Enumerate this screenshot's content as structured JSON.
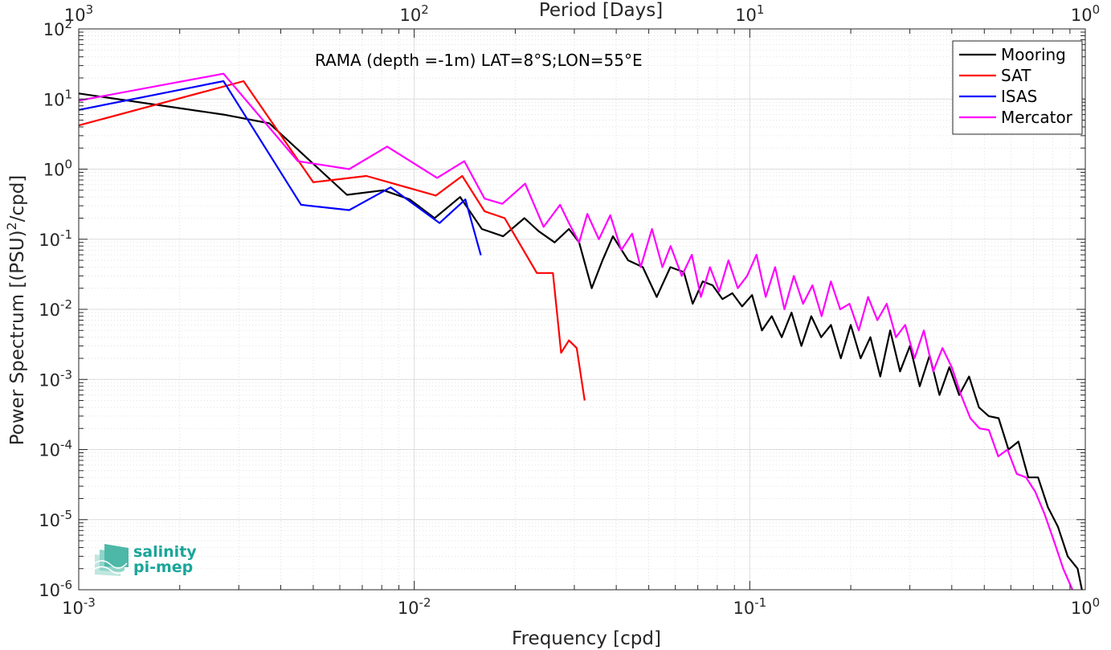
{
  "chart_data": {
    "type": "line",
    "xscale": "log",
    "yscale": "log",
    "xlabel": "Frequency [cpd]",
    "ylabel": "Power Spectrum [(PSU)^2/cpd]",
    "top_xlabel": "Period [Days]",
    "annotation": "RAMA (depth =-1m) LAT=8°S;LON=55°E",
    "xlim": [
      0.001,
      1
    ],
    "ylim": [
      1e-06,
      100
    ],
    "grid": true,
    "legend_position": "top-right",
    "x_ticks": [
      {
        "value": 0.001,
        "base": "10",
        "exp": "-3"
      },
      {
        "value": 0.01,
        "base": "10",
        "exp": "-2"
      },
      {
        "value": 0.1,
        "base": "10",
        "exp": "-1"
      },
      {
        "value": 1,
        "base": "10",
        "exp": "0"
      }
    ],
    "top_ticks": [
      {
        "value": 0.001,
        "base": "10",
        "exp": "3"
      },
      {
        "value": 0.01,
        "base": "10",
        "exp": "2"
      },
      {
        "value": 0.1,
        "base": "10",
        "exp": "1"
      },
      {
        "value": 1,
        "base": "10",
        "exp": "0"
      }
    ],
    "y_ticks": [
      {
        "value": 100,
        "base": "10",
        "exp": "2"
      },
      {
        "value": 10,
        "base": "10",
        "exp": "1"
      },
      {
        "value": 1,
        "base": "10",
        "exp": "0"
      },
      {
        "value": 0.1,
        "base": "10",
        "exp": "-1"
      },
      {
        "value": 0.01,
        "base": "10",
        "exp": "-2"
      },
      {
        "value": 0.001,
        "base": "10",
        "exp": "-3"
      },
      {
        "value": 0.0001,
        "base": "10",
        "exp": "-4"
      },
      {
        "value": 1e-05,
        "base": "10",
        "exp": "-5"
      },
      {
        "value": 1e-06,
        "base": "10",
        "exp": "-6"
      }
    ],
    "series": [
      {
        "name": "Mooring",
        "color": "#000000",
        "points": [
          [
            0.001,
            12
          ],
          [
            0.0027,
            6
          ],
          [
            0.0037,
            4.5
          ],
          [
            0.0063,
            0.43
          ],
          [
            0.0081,
            0.5
          ],
          [
            0.0097,
            0.37
          ],
          [
            0.0115,
            0.2
          ],
          [
            0.0137,
            0.4
          ],
          [
            0.0159,
            0.14
          ],
          [
            0.0184,
            0.11
          ],
          [
            0.0213,
            0.2
          ],
          [
            0.0235,
            0.13
          ],
          [
            0.0262,
            0.09
          ],
          [
            0.0289,
            0.14
          ],
          [
            0.031,
            0.09
          ],
          [
            0.0338,
            0.02
          ],
          [
            0.0364,
            0.05
          ],
          [
            0.0391,
            0.11
          ],
          [
            0.0434,
            0.05
          ],
          [
            0.048,
            0.04
          ],
          [
            0.0528,
            0.015
          ],
          [
            0.058,
            0.04
          ],
          [
            0.0636,
            0.034
          ],
          [
            0.0676,
            0.012
          ],
          [
            0.0724,
            0.025
          ],
          [
            0.0775,
            0.022
          ],
          [
            0.0829,
            0.014
          ],
          [
            0.0887,
            0.017
          ],
          [
            0.0949,
            0.011
          ],
          [
            0.1016,
            0.016
          ],
          [
            0.1087,
            0.005
          ],
          [
            0.1163,
            0.008
          ],
          [
            0.1245,
            0.004
          ],
          [
            0.1332,
            0.009
          ],
          [
            0.1425,
            0.003
          ],
          [
            0.1525,
            0.008
          ],
          [
            0.1632,
            0.004
          ],
          [
            0.1746,
            0.006
          ],
          [
            0.1868,
            0.002
          ],
          [
            0.1999,
            0.006
          ],
          [
            0.2139,
            0.002
          ],
          [
            0.2289,
            0.004
          ],
          [
            0.2449,
            0.0011
          ],
          [
            0.2621,
            0.005
          ],
          [
            0.2804,
            0.0013
          ],
          [
            0.3001,
            0.003
          ],
          [
            0.3211,
            0.0008
          ],
          [
            0.3436,
            0.0022
          ],
          [
            0.3676,
            0.0006
          ],
          [
            0.3934,
            0.0015
          ],
          [
            0.4209,
            0.0006
          ],
          [
            0.4504,
            0.0011
          ],
          [
            0.4819,
            0.0004
          ],
          [
            0.5156,
            0.0003
          ],
          [
            0.5517,
            0.00028
          ],
          [
            0.5904,
            0.0001
          ],
          [
            0.6317,
            0.00013
          ],
          [
            0.676,
            4e-05
          ],
          [
            0.7233,
            4e-05
          ],
          [
            0.774,
            1.5e-05
          ],
          [
            0.8282,
            8e-06
          ],
          [
            0.8862,
            3e-06
          ],
          [
            0.9482,
            2e-06
          ],
          [
            0.9772,
            1e-06
          ]
        ]
      },
      {
        "name": "SAT",
        "color": "#ff0000",
        "points": [
          [
            0.001,
            4.2
          ],
          [
            0.0031,
            18
          ],
          [
            0.005,
            0.65
          ],
          [
            0.0072,
            0.8
          ],
          [
            0.0116,
            0.42
          ],
          [
            0.0139,
            0.8
          ],
          [
            0.0162,
            0.25
          ],
          [
            0.0186,
            0.2
          ],
          [
            0.0232,
            0.033
          ],
          [
            0.0259,
            0.033
          ],
          [
            0.0274,
            0.0024
          ],
          [
            0.0289,
            0.0036
          ],
          [
            0.0305,
            0.0028
          ],
          [
            0.0322,
            0.0005
          ]
        ]
      },
      {
        "name": "ISAS",
        "color": "#0000ff",
        "points": [
          [
            0.001,
            7
          ],
          [
            0.0027,
            18
          ],
          [
            0.0046,
            0.31
          ],
          [
            0.0064,
            0.26
          ],
          [
            0.0085,
            0.55
          ],
          [
            0.0119,
            0.17
          ],
          [
            0.0142,
            0.37
          ],
          [
            0.0158,
            0.059
          ]
        ]
      },
      {
        "name": "Mercator",
        "color": "#ff00ff",
        "points": [
          [
            0.001,
            9.5
          ],
          [
            0.0027,
            23
          ],
          [
            0.0045,
            1.3
          ],
          [
            0.0064,
            1.0
          ],
          [
            0.0083,
            2.1
          ],
          [
            0.0117,
            0.75
          ],
          [
            0.0141,
            1.3
          ],
          [
            0.0162,
            0.38
          ],
          [
            0.0183,
            0.32
          ],
          [
            0.0214,
            0.62
          ],
          [
            0.0243,
            0.15
          ],
          [
            0.0272,
            0.31
          ],
          [
            0.0289,
            0.17
          ],
          [
            0.031,
            0.09
          ],
          [
            0.0328,
            0.23
          ],
          [
            0.0355,
            0.1
          ],
          [
            0.0384,
            0.22
          ],
          [
            0.0414,
            0.07
          ],
          [
            0.0446,
            0.12
          ],
          [
            0.0473,
            0.04
          ],
          [
            0.0511,
            0.14
          ],
          [
            0.0549,
            0.04
          ],
          [
            0.0581,
            0.08
          ],
          [
            0.0627,
            0.03
          ],
          [
            0.0672,
            0.06
          ],
          [
            0.0715,
            0.015
          ],
          [
            0.0761,
            0.04
          ],
          [
            0.0811,
            0.018
          ],
          [
            0.0864,
            0.05
          ],
          [
            0.0921,
            0.02
          ],
          [
            0.0982,
            0.03
          ],
          [
            0.1047,
            0.06
          ],
          [
            0.1116,
            0.015
          ],
          [
            0.119,
            0.04
          ],
          [
            0.1269,
            0.01
          ],
          [
            0.1353,
            0.03
          ],
          [
            0.1442,
            0.012
          ],
          [
            0.1537,
            0.022
          ],
          [
            0.1638,
            0.008
          ],
          [
            0.1745,
            0.025
          ],
          [
            0.186,
            0.01
          ],
          [
            0.1983,
            0.012
          ],
          [
            0.2113,
            0.005
          ],
          [
            0.2252,
            0.015
          ],
          [
            0.2401,
            0.007
          ],
          [
            0.2559,
            0.012
          ],
          [
            0.2727,
            0.004
          ],
          [
            0.2906,
            0.006
          ],
          [
            0.3098,
            0.002
          ],
          [
            0.3302,
            0.005
          ],
          [
            0.352,
            0.0013
          ],
          [
            0.3752,
            0.0028
          ],
          [
            0.3999,
            0.0015
          ],
          [
            0.4262,
            0.0006
          ],
          [
            0.4543,
            0.00028
          ],
          [
            0.4842,
            0.0002
          ],
          [
            0.516,
            0.00019
          ],
          [
            0.55,
            8e-05
          ],
          [
            0.5862,
            0.0001
          ],
          [
            0.6247,
            4.5e-05
          ],
          [
            0.6658,
            4e-05
          ],
          [
            0.7095,
            2.5e-05
          ],
          [
            0.7563,
            1.2e-05
          ],
          [
            0.8062,
            5e-06
          ],
          [
            0.8592,
            2e-06
          ],
          [
            0.9158,
            1e-06
          ]
        ]
      }
    ]
  },
  "logo": {
    "line1": "salinity",
    "line2": "pi-mep",
    "color": "#1aa59a"
  }
}
